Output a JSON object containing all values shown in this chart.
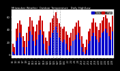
{
  "title": "Milwaukee Weather  Outdoor Temperature   Daily High/Low",
  "title_fontsize": 2.8,
  "bar_width": 0.4,
  "background_color": "#000000",
  "plot_bg_color": "#ffffff",
  "high_color": "#cc0000",
  "low_color": "#0000cc",
  "dashed_line_color": "#aaaaaa",
  "categories": [
    "1/1",
    "1/2",
    "1/3",
    "1/4",
    "1/5",
    "1/6",
    "1/7",
    "1/8",
    "1/9",
    "1/10",
    "1/11",
    "1/12",
    "1/13",
    "1/14",
    "1/15",
    "1/16",
    "1/17",
    "1/18",
    "1/19",
    "1/20",
    "1/21",
    "1/22",
    "1/23",
    "1/24",
    "1/25",
    "1/26",
    "1/27",
    "1/28",
    "1/29",
    "1/30",
    "1/31",
    "2/1",
    "2/2",
    "2/3",
    "2/4",
    "2/5",
    "2/6",
    "2/7",
    "2/8",
    "2/9",
    "2/10",
    "2/11",
    "2/12",
    "2/13",
    "2/14",
    "2/15",
    "2/16",
    "2/17",
    "2/18",
    "2/19",
    "2/20",
    "2/21",
    "2/22",
    "2/23",
    "2/24",
    "2/25",
    "2/26",
    "2/27",
    "2/28"
  ],
  "highs": [
    18,
    12,
    42,
    50,
    55,
    48,
    30,
    22,
    35,
    45,
    60,
    55,
    45,
    38,
    48,
    55,
    62,
    55,
    38,
    28,
    22,
    38,
    52,
    58,
    62,
    68,
    58,
    50,
    45,
    42,
    45,
    38,
    32,
    28,
    35,
    42,
    45,
    52,
    55,
    45,
    30,
    18,
    12,
    25,
    38,
    42,
    52,
    58,
    52,
    45,
    40,
    50,
    55,
    60,
    65,
    58,
    52,
    45,
    62
  ],
  "lows": [
    5,
    2,
    22,
    28,
    35,
    28,
    12,
    2,
    12,
    22,
    38,
    32,
    22,
    15,
    25,
    32,
    40,
    32,
    18,
    8,
    2,
    15,
    28,
    35,
    40,
    45,
    35,
    28,
    22,
    20,
    25,
    18,
    8,
    5,
    15,
    22,
    25,
    32,
    35,
    25,
    12,
    5,
    2,
    8,
    18,
    22,
    30,
    35,
    30,
    25,
    20,
    28,
    35,
    38,
    42,
    35,
    30,
    25,
    38
  ],
  "dashed_lines": [
    23.5,
    25.5,
    27.5
  ],
  "ylim": [
    -5,
    72
  ],
  "yticks": [
    0,
    20,
    40,
    60
  ],
  "ytick_labels": [
    "0",
    "20",
    "40",
    "60"
  ],
  "ylabel_fontsize": 2.8,
  "xlabel_fontsize": 2.2,
  "tick_interval": 2,
  "legend_high": "High",
  "legend_low": "Low",
  "legend_fontsize": 2.5
}
